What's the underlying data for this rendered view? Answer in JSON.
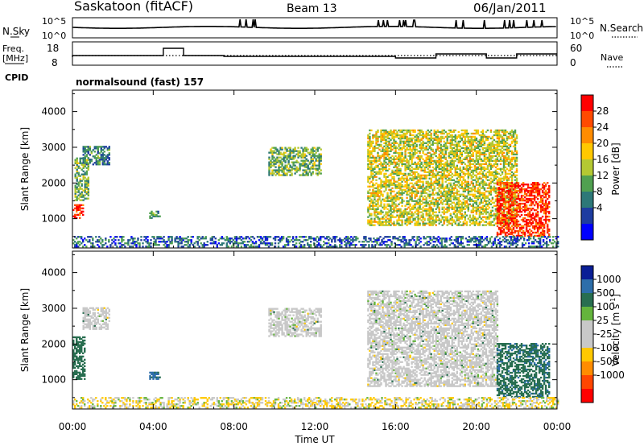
{
  "header": {
    "title": "Saskatoon (fitACF)",
    "beam": "Beam 13",
    "date": "06/Jan/2011",
    "cpid_label": "CPID",
    "cpid_value": "normalsound (fast) 157"
  },
  "noise_panel": {
    "left_label": "N.Sky",
    "right_label": "N.Search",
    "left_ticks": [
      "10^5",
      "10^0"
    ],
    "right_ticks": [
      "10^5",
      "10^0"
    ]
  },
  "freq_panel": {
    "left_label": "Freq.",
    "left_unit": "[MHz]",
    "right_label": "Nave",
    "left_ticks": [
      "18",
      "8"
    ],
    "right_ticks": [
      "60",
      "0"
    ]
  },
  "time_axis": {
    "label": "Time UT",
    "ticks": [
      "00:00",
      "04:00",
      "08:00",
      "12:00",
      "16:00",
      "20:00",
      "00:00"
    ]
  },
  "range_axis": {
    "label": "Slant Range [km]",
    "ticks": [
      "1000",
      "2000",
      "3000",
      "4000"
    ]
  },
  "power_colorbar": {
    "label": "Power [dB]",
    "ticks": [
      "28",
      "24",
      "20",
      "16",
      "12",
      "8",
      "4"
    ],
    "colors": [
      "#ff0000",
      "#ff4a00",
      "#ff8c00",
      "#ffc800",
      "#b4c832",
      "#50a050",
      "#2d7878",
      "#1e3ca0",
      "#0000ff"
    ]
  },
  "velocity_colorbar": {
    "label": "Velocity [m s",
    "label_sup": "-1",
    "label_end": "]",
    "ticks": [
      "1000",
      "500",
      "100",
      "25",
      "-25",
      "-100",
      "-500",
      "-1000"
    ],
    "colors": [
      "#0a1e96",
      "#2d6eaa",
      "#286e50",
      "#64b43c",
      "#c8c8c8",
      "#c8c8c8",
      "#ffc800",
      "#ff8c00",
      "#ff4600",
      "#ff0000"
    ]
  },
  "chart_data": [
    {
      "type": "heatmap",
      "name": "power",
      "xlabel": "Time UT",
      "ylabel": "Slant Range [km]",
      "xlim": [
        0,
        24
      ],
      "ylim": [
        180,
        4600
      ],
      "clabel": "Power [dB]",
      "clim": [
        0,
        30
      ],
      "echo_regions": [
        {
          "t": [
            0.0,
            0.5
          ],
          "r": [
            1000,
            1400
          ],
          "power": 28
        },
        {
          "t": [
            0.1,
            0.8
          ],
          "r": [
            1500,
            2700
          ],
          "power": 12
        },
        {
          "t": [
            0.5,
            1.8
          ],
          "r": [
            2500,
            3000
          ],
          "power": 8
        },
        {
          "t": [
            3.8,
            4.3
          ],
          "r": [
            1000,
            1200
          ],
          "power": 10
        },
        {
          "t": [
            9.7,
            12.3
          ],
          "r": [
            2200,
            3000
          ],
          "power": 12
        },
        {
          "t": [
            14.6,
            22.0
          ],
          "r": [
            800,
            3500
          ],
          "power": 16
        },
        {
          "t": [
            21.0,
            23.6
          ],
          "r": [
            500,
            2000
          ],
          "power": 28
        },
        {
          "t": [
            0.0,
            24.0
          ],
          "r": [
            200,
            500
          ],
          "power": 6
        }
      ]
    },
    {
      "type": "heatmap",
      "name": "velocity",
      "xlabel": "Time UT",
      "ylabel": "Slant Range [km]",
      "xlim": [
        0,
        24
      ],
      "ylim": [
        180,
        4600
      ],
      "clabel": "Velocity [m s-1]",
      "clim": [
        -1000,
        1000
      ],
      "echo_regions": [
        {
          "t": [
            0.0,
            0.6
          ],
          "r": [
            1000,
            2200
          ],
          "velocity": 300
        },
        {
          "t": [
            0.5,
            1.8
          ],
          "r": [
            2400,
            3000
          ],
          "velocity": 0
        },
        {
          "t": [
            3.8,
            4.3
          ],
          "r": [
            1000,
            1200
          ],
          "velocity": 600
        },
        {
          "t": [
            9.7,
            12.3
          ],
          "r": [
            2200,
            3000
          ],
          "velocity": 0
        },
        {
          "t": [
            14.6,
            21.0
          ],
          "r": [
            800,
            3500
          ],
          "velocity": 0
        },
        {
          "t": [
            21.0,
            23.6
          ],
          "r": [
            500,
            2000
          ],
          "velocity": 400
        },
        {
          "t": [
            0.0,
            24.0
          ],
          "r": [
            200,
            500
          ],
          "velocity": -80
        }
      ]
    }
  ]
}
